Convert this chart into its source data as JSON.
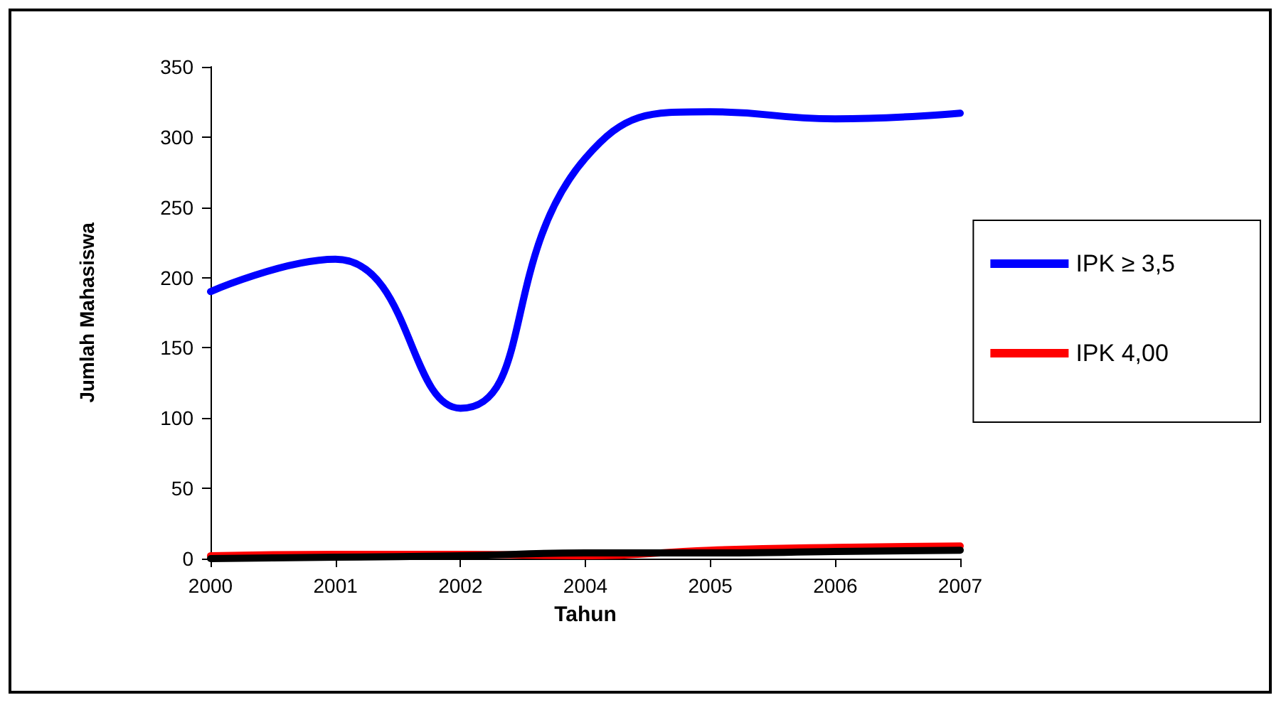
{
  "chart_data": {
    "type": "line",
    "xlabel": "Tahun",
    "ylabel": "Jumlah Mahasiswa",
    "categories": [
      "2000",
      "2001",
      "2002",
      "2004",
      "2005",
      "2006",
      "2007"
    ],
    "series": [
      {
        "name": "IPK ≥ 3,5",
        "color": "#0000ff",
        "values": [
          190,
          213,
          107,
          285,
          318,
          313,
          317
        ]
      },
      {
        "name": "IPK 4,00",
        "color": "#ff0000",
        "values": [
          2,
          3,
          3,
          2,
          6,
          8,
          9
        ]
      },
      {
        "color": "#000000",
        "values": [
          0,
          1,
          2,
          4,
          4,
          5,
          6
        ]
      }
    ],
    "ylim": [
      0,
      350
    ],
    "yticks": [
      0,
      50,
      100,
      150,
      200,
      250,
      300,
      350
    ],
    "grid": false,
    "legend": "right",
    "marker": "none",
    "line_style": "solid"
  }
}
